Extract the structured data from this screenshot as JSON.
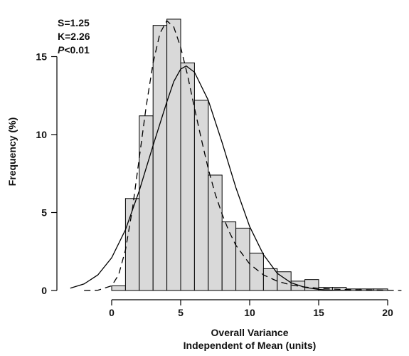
{
  "chart_data": {
    "type": "bar",
    "subtype": "histogram-with-density-curves",
    "xlabel_line1": "Overall Variance",
    "xlabel_line2": "Independent of Mean (units)",
    "ylabel": "Frequency (%)",
    "xlim": [
      -3.5,
      21.5
    ],
    "ylim": [
      0,
      18
    ],
    "x_ticks": [
      0,
      5,
      10,
      15,
      20
    ],
    "y_ticks": [
      0,
      5,
      10,
      15
    ],
    "bin_width": 1,
    "bins": [
      {
        "start": 0,
        "end": 1,
        "value": 0.3
      },
      {
        "start": 1,
        "end": 2,
        "value": 5.9
      },
      {
        "start": 2,
        "end": 3,
        "value": 11.2
      },
      {
        "start": 3,
        "end": 4,
        "value": 17.0
      },
      {
        "start": 4,
        "end": 5,
        "value": 17.4
      },
      {
        "start": 5,
        "end": 6,
        "value": 14.6
      },
      {
        "start": 6,
        "end": 7,
        "value": 12.2
      },
      {
        "start": 7,
        "end": 8,
        "value": 7.4
      },
      {
        "start": 8,
        "end": 9,
        "value": 4.4
      },
      {
        "start": 9,
        "end": 10,
        "value": 4.0
      },
      {
        "start": 10,
        "end": 11,
        "value": 2.4
      },
      {
        "start": 11,
        "end": 12,
        "value": 1.4
      },
      {
        "start": 12,
        "end": 13,
        "value": 1.2
      },
      {
        "start": 13,
        "end": 14,
        "value": 0.6
      },
      {
        "start": 14,
        "end": 15,
        "value": 0.7
      },
      {
        "start": 15,
        "end": 16,
        "value": 0.2
      },
      {
        "start": 16,
        "end": 17,
        "value": 0.2
      },
      {
        "start": 17,
        "end": 18,
        "value": 0.1
      },
      {
        "start": 18,
        "end": 19,
        "value": 0.1
      },
      {
        "start": 19,
        "end": 20,
        "value": 0.1
      }
    ],
    "curves": [
      {
        "style": "dashed",
        "kind": "skewed fit",
        "points": [
          [
            -2,
            0
          ],
          [
            -1,
            0.02
          ],
          [
            0,
            0.3
          ],
          [
            0.5,
            1.0
          ],
          [
            1,
            2.6
          ],
          [
            1.5,
            5.2
          ],
          [
            2,
            8.5
          ],
          [
            2.5,
            11.8
          ],
          [
            3,
            14.6
          ],
          [
            3.5,
            16.5
          ],
          [
            4,
            17.3
          ],
          [
            4.5,
            16.9
          ],
          [
            5,
            15.6
          ],
          [
            5.5,
            13.8
          ],
          [
            6,
            11.7
          ],
          [
            6.5,
            9.7
          ],
          [
            7,
            7.8
          ],
          [
            7.5,
            6.2
          ],
          [
            8,
            4.9
          ],
          [
            8.5,
            3.8
          ],
          [
            9,
            2.9
          ],
          [
            10,
            1.7
          ],
          [
            11,
            1.0
          ],
          [
            12,
            0.6
          ],
          [
            13,
            0.35
          ],
          [
            14,
            0.22
          ],
          [
            15,
            0.14
          ],
          [
            16,
            0.09
          ],
          [
            17,
            0.06
          ],
          [
            18,
            0.04
          ],
          [
            19,
            0.03
          ],
          [
            20,
            0.02
          ],
          [
            21,
            0
          ]
        ]
      },
      {
        "style": "solid",
        "kind": "normal fit",
        "points": [
          [
            -3,
            0.15
          ],
          [
            -2,
            0.42
          ],
          [
            -1,
            1.0
          ],
          [
            0,
            2.1
          ],
          [
            1,
            3.9
          ],
          [
            2,
            6.4
          ],
          [
            3,
            9.3
          ],
          [
            4,
            12.1
          ],
          [
            4.5,
            13.4
          ],
          [
            5,
            14.2
          ],
          [
            5.4,
            14.4
          ],
          [
            6,
            14.0
          ],
          [
            7,
            12.2
          ],
          [
            8,
            9.5
          ],
          [
            9,
            6.6
          ],
          [
            10,
            4.1
          ],
          [
            11,
            2.3
          ],
          [
            12,
            1.1
          ],
          [
            13,
            0.5
          ],
          [
            14,
            0.2
          ],
          [
            15,
            0.07
          ],
          [
            16,
            0.02
          ],
          [
            17,
            0.005
          ]
        ]
      }
    ],
    "annotations": {
      "skewness": "S=1.25",
      "kurtosis": "K=2.26",
      "p_value_symbol": "P",
      "p_value_rest": "<0.01"
    },
    "colors": {
      "bar_fill": "#d9d9d9",
      "bar_stroke": "#000000",
      "curve": "#000000"
    }
  }
}
